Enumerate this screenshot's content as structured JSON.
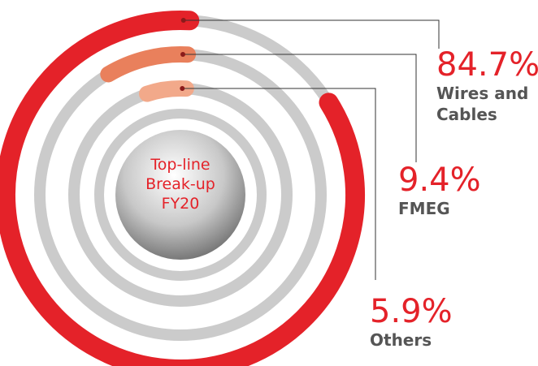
{
  "chart_data": {
    "type": "radial_bar",
    "title": "Top-line Break-up FY20",
    "categories": [
      "Wires and Cables",
      "FMEG",
      "Others"
    ],
    "values": [
      84.7,
      9.4,
      5.9
    ],
    "value_labels": [
      "84.7%",
      "9.4%",
      "5.9%"
    ],
    "colors": [
      "#e42229",
      "#e9805c",
      "#f2a98a"
    ]
  }
}
